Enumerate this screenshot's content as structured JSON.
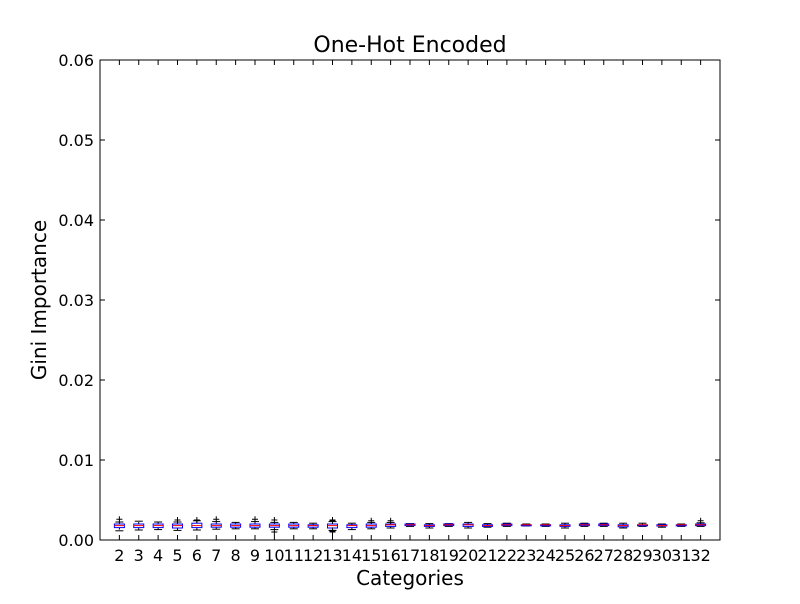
{
  "chart_data": {
    "type": "box",
    "title": "One-Hot Encoded",
    "xlabel": "Categories",
    "ylabel": "Gini Importance",
    "ylim": [
      0.0,
      0.06
    ],
    "yticks": [
      "0.00",
      "0.01",
      "0.02",
      "0.03",
      "0.04",
      "0.05",
      "0.06"
    ],
    "categories": [
      "2",
      "3",
      "4",
      "5",
      "6",
      "7",
      "8",
      "9",
      "10",
      "11",
      "12",
      "13",
      "14",
      "15",
      "16",
      "17",
      "18",
      "19",
      "20",
      "21",
      "22",
      "23",
      "24",
      "25",
      "26",
      "27",
      "28",
      "29",
      "30",
      "31",
      "32"
    ],
    "boxes": [
      {
        "whislo": 0.00115,
        "q1": 0.00155,
        "med": 0.0018,
        "q3": 0.002,
        "whishi": 0.00225,
        "fliers": [
          0.0026
        ]
      },
      {
        "whislo": 0.00125,
        "q1": 0.00155,
        "med": 0.0018,
        "q3": 0.002,
        "whishi": 0.00235,
        "fliers": []
      },
      {
        "whislo": 0.0013,
        "q1": 0.00155,
        "med": 0.0018,
        "q3": 0.002,
        "whishi": 0.00225,
        "fliers": []
      },
      {
        "whislo": 0.0012,
        "q1": 0.0015,
        "med": 0.0018,
        "q3": 0.002,
        "whishi": 0.00225,
        "fliers": [
          0.0025
        ]
      },
      {
        "whislo": 0.00125,
        "q1": 0.00155,
        "med": 0.0018,
        "q3": 0.0021,
        "whishi": 0.0024,
        "fliers": [
          0.0025
        ]
      },
      {
        "whislo": 0.00135,
        "q1": 0.0016,
        "med": 0.0018,
        "q3": 0.002,
        "whishi": 0.0023,
        "fliers": [
          0.0026
        ]
      },
      {
        "whislo": 0.0014,
        "q1": 0.0016,
        "med": 0.0018,
        "q3": 0.002,
        "whishi": 0.0022,
        "fliers": []
      },
      {
        "whislo": 0.0014,
        "q1": 0.0016,
        "med": 0.0018,
        "q3": 0.002,
        "whishi": 0.0023,
        "fliers": [
          0.0026
        ]
      },
      {
        "whislo": 0.0013,
        "q1": 0.0016,
        "med": 0.0018,
        "q3": 0.002,
        "whishi": 0.0022,
        "fliers": [
          0.001,
          0.0025
        ]
      },
      {
        "whislo": 0.0014,
        "q1": 0.0016,
        "med": 0.0018,
        "q3": 0.002,
        "whishi": 0.0022,
        "fliers": []
      },
      {
        "whislo": 0.0014,
        "q1": 0.0016,
        "med": 0.0018,
        "q3": 0.0019,
        "whishi": 0.0021,
        "fliers": []
      },
      {
        "whislo": 0.0012,
        "q1": 0.0015,
        "med": 0.0018,
        "q3": 0.002,
        "whishi": 0.0023,
        "fliers": [
          0.001,
          0.0011,
          0.0012,
          0.0024,
          0.0025
        ]
      },
      {
        "whislo": 0.0013,
        "q1": 0.00155,
        "med": 0.0018,
        "q3": 0.0019,
        "whishi": 0.0021,
        "fliers": []
      },
      {
        "whislo": 0.0014,
        "q1": 0.0016,
        "med": 0.0018,
        "q3": 0.002,
        "whishi": 0.0022,
        "fliers": [
          0.0024
        ]
      },
      {
        "whislo": 0.0015,
        "q1": 0.0017,
        "med": 0.0019,
        "q3": 0.002,
        "whishi": 0.0022,
        "fliers": [
          0.0024
        ]
      },
      {
        "whislo": 0.0017,
        "q1": 0.0018,
        "med": 0.0019,
        "q3": 0.002,
        "whishi": 0.00205,
        "fliers": []
      },
      {
        "whislo": 0.0015,
        "q1": 0.0017,
        "med": 0.0018,
        "q3": 0.0019,
        "whishi": 0.00205,
        "fliers": []
      },
      {
        "whislo": 0.0017,
        "q1": 0.0018,
        "med": 0.0019,
        "q3": 0.002,
        "whishi": 0.00205,
        "fliers": []
      },
      {
        "whislo": 0.0015,
        "q1": 0.0017,
        "med": 0.0019,
        "q3": 0.002,
        "whishi": 0.0022,
        "fliers": []
      },
      {
        "whislo": 0.0016,
        "q1": 0.0017,
        "med": 0.0018,
        "q3": 0.0019,
        "whishi": 0.00205,
        "fliers": []
      },
      {
        "whislo": 0.0017,
        "q1": 0.0018,
        "med": 0.0019,
        "q3": 0.002,
        "whishi": 0.0021,
        "fliers": []
      },
      {
        "whislo": 0.00175,
        "q1": 0.0018,
        "med": 0.0019,
        "q3": 0.0019,
        "whishi": 0.002,
        "fliers": []
      },
      {
        "whislo": 0.0017,
        "q1": 0.0018,
        "med": 0.0019,
        "q3": 0.0019,
        "whishi": 0.002,
        "fliers": []
      },
      {
        "whislo": 0.0015,
        "q1": 0.0017,
        "med": 0.0018,
        "q3": 0.0019,
        "whishi": 0.0021,
        "fliers": []
      },
      {
        "whislo": 0.0017,
        "q1": 0.0018,
        "med": 0.0019,
        "q3": 0.002,
        "whishi": 0.0021,
        "fliers": []
      },
      {
        "whislo": 0.0017,
        "q1": 0.0018,
        "med": 0.0019,
        "q3": 0.002,
        "whishi": 0.0021,
        "fliers": []
      },
      {
        "whislo": 0.0015,
        "q1": 0.00165,
        "med": 0.0018,
        "q3": 0.0019,
        "whishi": 0.0021,
        "fliers": []
      },
      {
        "whislo": 0.0017,
        "q1": 0.0018,
        "med": 0.0019,
        "q3": 0.0019,
        "whishi": 0.0021,
        "fliers": []
      },
      {
        "whislo": 0.0016,
        "q1": 0.00175,
        "med": 0.0018,
        "q3": 0.0019,
        "whishi": 0.002,
        "fliers": []
      },
      {
        "whislo": 0.0017,
        "q1": 0.0018,
        "med": 0.0019,
        "q3": 0.0019,
        "whishi": 0.002,
        "fliers": []
      },
      {
        "whislo": 0.0017,
        "q1": 0.0018,
        "med": 0.0019,
        "q3": 0.002,
        "whishi": 0.00215,
        "fliers": [
          0.0024
        ]
      }
    ],
    "colors": {
      "box": "#0000ff",
      "median": "#ff0000",
      "whisker": "#000000",
      "flier": "#000000",
      "axes": "#000000",
      "background": "#ffffff"
    },
    "grid": false,
    "legend": "none"
  }
}
